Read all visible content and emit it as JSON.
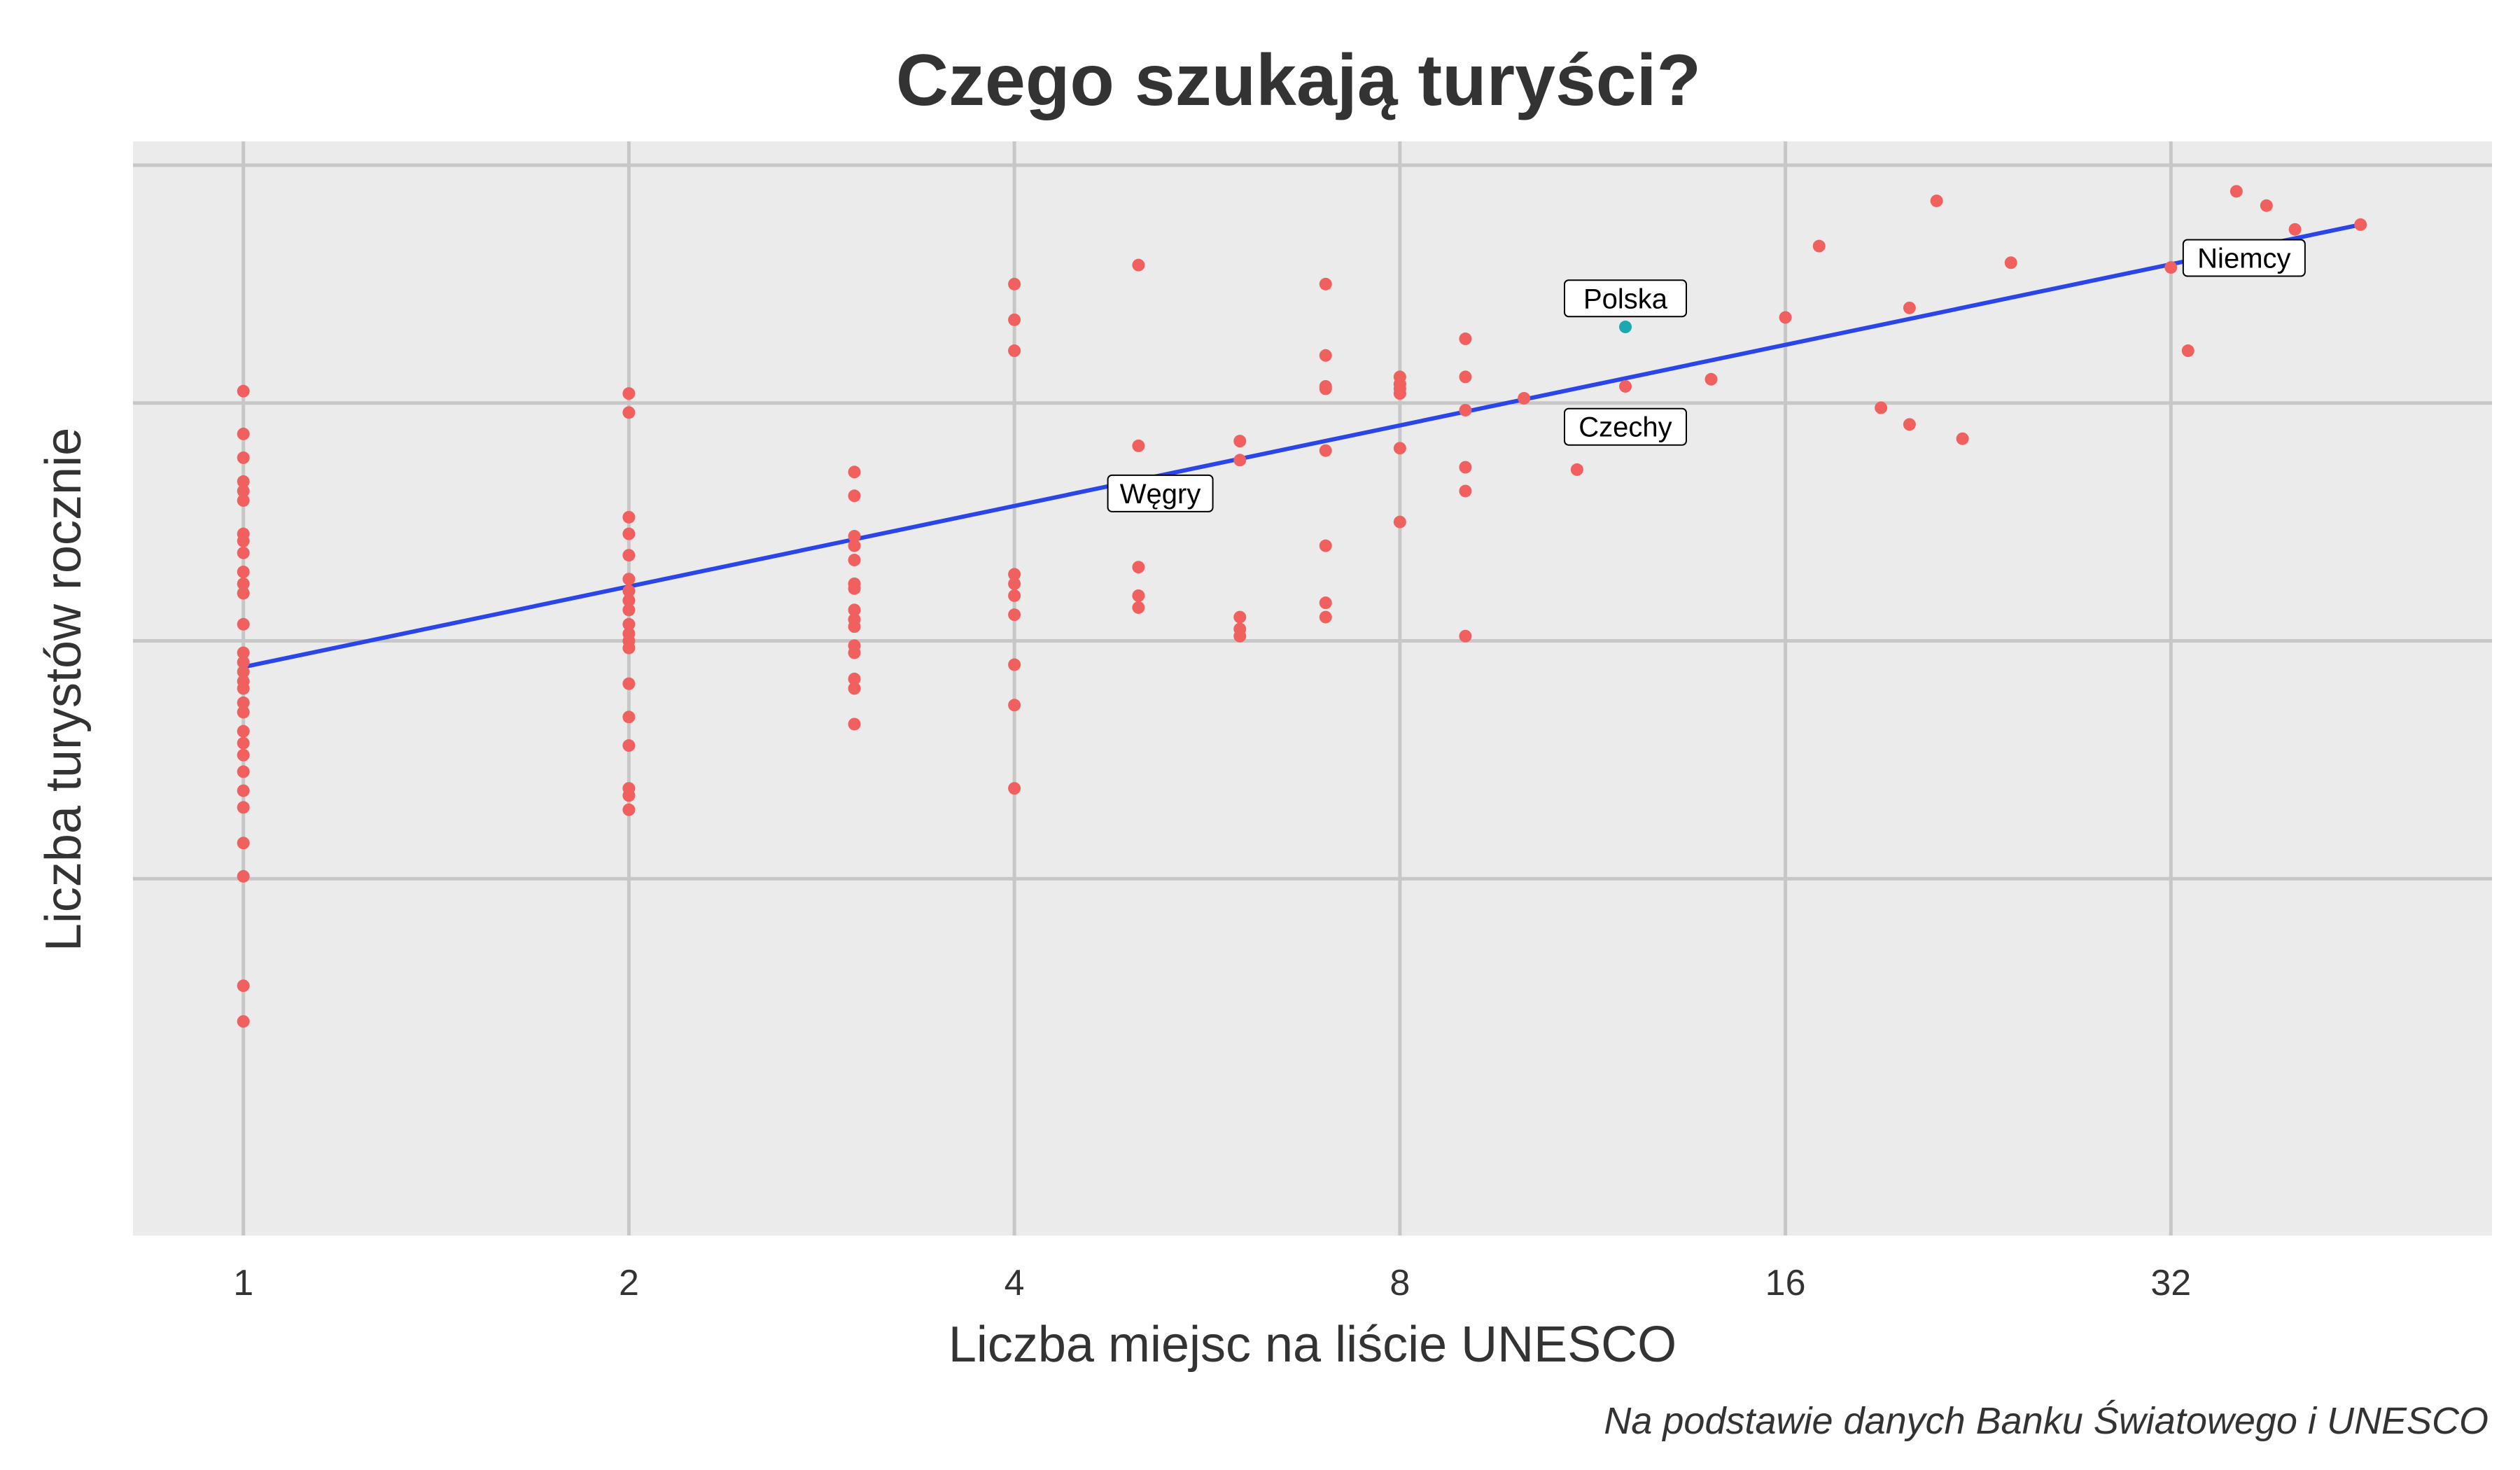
{
  "chart_data": {
    "type": "scatter",
    "title": "Czego szukają turyści?",
    "xlabel": "Liczba miejsc na liście UNESCO",
    "ylabel": "Liczba turystów rocznie",
    "caption": "Na podstawie danych Banku Światowego i UNESCO",
    "x_scale": "log2",
    "x_ticks": [
      1,
      2,
      4,
      8,
      16,
      32
    ],
    "x_tick_labels": [
      "1",
      "2",
      "4",
      "8",
      "16",
      "32"
    ],
    "xlim": [
      0.82,
      57
    ],
    "y_scale": "log",
    "y_tick_labels_shown": false,
    "ylim": [
      0,
      4.6
    ],
    "grid": true,
    "colors": {
      "points": "#F0605F",
      "highlight": "#1BA8AE",
      "trend": "#2A45E8",
      "panel": "#EBEBEB",
      "gridline": "#C7C7C7"
    },
    "series": [
      {
        "role": "countries",
        "points": [
          [
            1,
            3.55
          ],
          [
            1,
            3.37
          ],
          [
            1,
            3.27
          ],
          [
            1,
            3.17
          ],
          [
            1,
            3.13
          ],
          [
            1,
            3.09
          ],
          [
            1,
            2.95
          ],
          [
            1,
            2.92
          ],
          [
            1,
            2.87
          ],
          [
            1,
            2.79
          ],
          [
            1,
            2.74
          ],
          [
            1,
            2.7
          ],
          [
            1,
            2.57
          ],
          [
            1,
            2.45
          ],
          [
            1,
            2.41
          ],
          [
            1,
            2.37
          ],
          [
            1,
            2.33
          ],
          [
            1,
            2.3
          ],
          [
            1,
            2.24
          ],
          [
            1,
            2.2
          ],
          [
            1,
            2.12
          ],
          [
            1,
            2.07
          ],
          [
            1,
            2.02
          ],
          [
            1,
            1.95
          ],
          [
            1,
            1.87
          ],
          [
            1,
            1.8
          ],
          [
            1,
            1.65
          ],
          [
            1,
            1.51
          ],
          [
            1,
            1.05
          ],
          [
            1,
            0.9
          ],
          [
            2,
            3.54
          ],
          [
            2,
            3.46
          ],
          [
            2,
            3.02
          ],
          [
            2,
            2.95
          ],
          [
            2,
            2.86
          ],
          [
            2,
            2.76
          ],
          [
            2,
            2.71
          ],
          [
            2,
            2.67
          ],
          [
            2,
            2.63
          ],
          [
            2,
            2.57
          ],
          [
            2,
            2.53
          ],
          [
            2,
            2.5
          ],
          [
            2,
            2.47
          ],
          [
            2,
            2.32
          ],
          [
            2,
            2.18
          ],
          [
            2,
            2.06
          ],
          [
            2,
            1.88
          ],
          [
            2,
            1.85
          ],
          [
            2,
            1.79
          ],
          [
            3,
            3.21
          ],
          [
            3,
            3.11
          ],
          [
            3,
            2.94
          ],
          [
            3,
            2.9
          ],
          [
            3,
            2.84
          ],
          [
            3,
            2.74
          ],
          [
            3,
            2.72
          ],
          [
            3,
            2.63
          ],
          [
            3,
            2.59
          ],
          [
            3,
            2.56
          ],
          [
            3,
            2.48
          ],
          [
            3,
            2.45
          ],
          [
            3,
            2.34
          ],
          [
            3,
            2.3
          ],
          [
            3,
            2.15
          ],
          [
            4,
            4.0
          ],
          [
            4,
            3.85
          ],
          [
            4,
            3.72
          ],
          [
            4,
            2.78
          ],
          [
            4,
            2.74
          ],
          [
            4,
            2.69
          ],
          [
            4,
            2.61
          ],
          [
            4,
            2.4
          ],
          [
            4,
            2.23
          ],
          [
            4,
            1.88
          ],
          [
            5,
            4.08
          ],
          [
            5,
            3.32
          ],
          [
            5,
            2.81
          ],
          [
            5,
            2.69
          ],
          [
            5,
            2.64
          ],
          [
            6,
            3.34
          ],
          [
            6,
            3.26
          ],
          [
            6,
            2.6
          ],
          [
            6,
            2.55
          ],
          [
            6,
            2.52
          ],
          [
            7,
            4.0
          ],
          [
            7,
            3.7
          ],
          [
            7,
            3.57
          ],
          [
            7,
            3.56
          ],
          [
            7,
            3.3
          ],
          [
            7,
            2.9
          ],
          [
            7,
            2.66
          ],
          [
            7,
            2.6
          ],
          [
            8,
            3.61
          ],
          [
            8,
            3.58
          ],
          [
            8,
            3.56
          ],
          [
            8,
            3.54
          ],
          [
            8,
            3.31
          ],
          [
            8,
            3.0
          ],
          [
            9,
            3.77
          ],
          [
            9,
            3.61
          ],
          [
            9,
            3.47
          ],
          [
            9,
            3.23
          ],
          [
            9,
            3.13
          ],
          [
            9,
            2.52
          ],
          [
            10,
            3.52
          ],
          [
            11,
            3.22
          ],
          [
            12,
            3.57
          ],
          [
            14,
            3.6
          ],
          [
            16,
            3.86
          ],
          [
            17,
            4.16
          ],
          [
            19,
            3.48
          ],
          [
            20,
            3.41
          ],
          [
            20,
            3.9
          ],
          [
            21,
            4.35
          ],
          [
            22,
            3.35
          ],
          [
            24,
            4.09
          ],
          [
            32,
            4.07
          ],
          [
            33,
            3.72
          ],
          [
            34,
            4.1
          ],
          [
            36,
            4.39
          ],
          [
            38,
            4.33
          ],
          [
            40,
            4.23
          ],
          [
            45,
            4.25
          ]
        ]
      },
      {
        "role": "highlight",
        "points": [
          [
            12,
            3.82
          ]
        ]
      }
    ],
    "trend_line": {
      "x": [
        1,
        45
      ],
      "y": [
        2.39,
        4.25
      ]
    },
    "annotations": [
      {
        "label": "Polska",
        "x": 12,
        "y": 3.94
      },
      {
        "label": "Niemcy",
        "x": 36.5,
        "y": 4.11
      },
      {
        "label": "Czechy",
        "x": 12,
        "y": 3.4
      },
      {
        "label": "Węgry",
        "x": 5.2,
        "y": 3.12
      }
    ]
  }
}
